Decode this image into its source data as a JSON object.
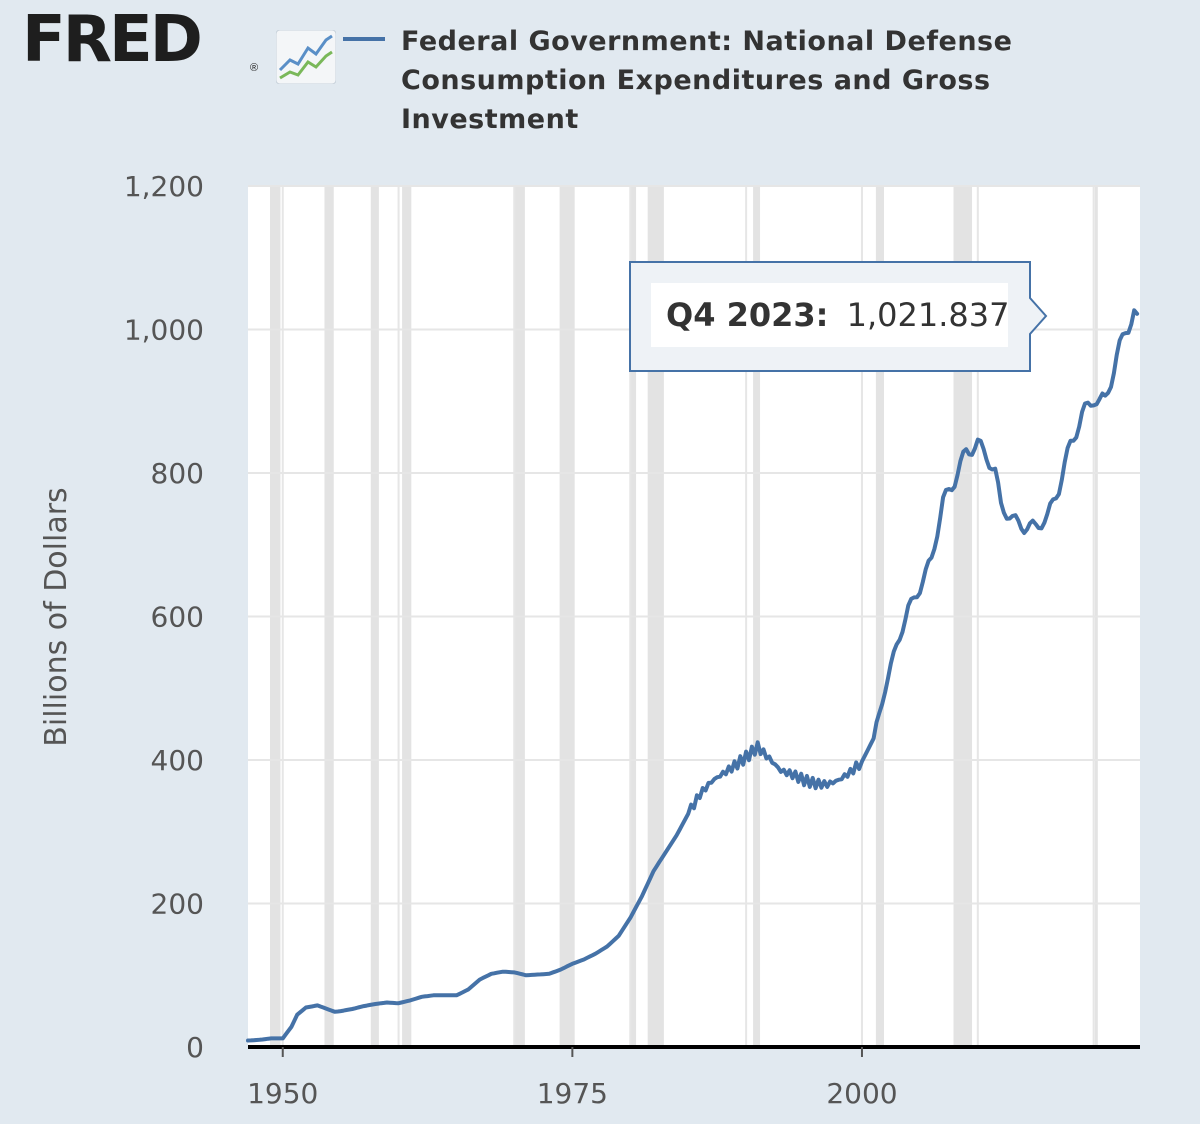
{
  "header": {
    "logo_text": "FRED",
    "logo_mark": "®",
    "logo_icon": "fred-trend-graph-icon",
    "legend_color": "#4572a7"
  },
  "chart_data": {
    "type": "line",
    "title": "Federal Government: National Defense Consumption Expenditures and Gross Investment",
    "xlabel": "",
    "ylabel": "Billions of Dollars",
    "xlim": [
      1947,
      2024
    ],
    "ylim": [
      0,
      1200
    ],
    "y_ticks": [
      0,
      200,
      400,
      600,
      800,
      1000,
      1200
    ],
    "y_tick_labels": [
      "0",
      "200",
      "400",
      "600",
      "800",
      "1,000",
      "1,200"
    ],
    "x_ticks": [
      1950,
      1975,
      2000
    ],
    "x_tick_labels": [
      "1950",
      "1975",
      "2000"
    ],
    "series": [
      {
        "name": "Federal Government: National Defense Consumption Expenditures and Gross Investment",
        "color": "#4572a7",
        "x": [
          1947.0,
          1948.0,
          1949.0,
          1950.0,
          1950.75,
          1951.25,
          1952.0,
          1953.0,
          1953.5,
          1954.5,
          1955.0,
          1956.0,
          1957.0,
          1958.0,
          1959.0,
          1960.0,
          1961.0,
          1962.0,
          1963.0,
          1964.0,
          1965.0,
          1966.0,
          1967.0,
          1968.0,
          1969.0,
          1970.0,
          1971.0,
          1972.0,
          1973.0,
          1974.0,
          1975.0,
          1976.0,
          1977.0,
          1978.0,
          1979.0,
          1980.0,
          1981.0,
          1982.0,
          1983.0,
          1984.0,
          1985.0,
          1986.0,
          1987.0,
          1988.0,
          1989.0,
          1990.0,
          1991.0,
          1992.0,
          1993.0,
          1994.0,
          1995.0,
          1996.0,
          1997.0,
          1998.0,
          1999.0,
          2000.0,
          2001.0,
          2002.0,
          2003.0,
          2004.0,
          2005.0,
          2006.0,
          2007.0,
          2008.0,
          2009.0,
          2010.0,
          2010.75,
          2011.5,
          2012.0,
          2013.0,
          2014.0,
          2015.0,
          2016.0,
          2017.0,
          2018.0,
          2019.0,
          2020.0,
          2020.5,
          2021.0,
          2022.0,
          2022.75,
          2023.5,
          2023.75
        ],
        "values": [
          9,
          10,
          12,
          12,
          28,
          45,
          55,
          58,
          55,
          49,
          50,
          53,
          57,
          60,
          62,
          61,
          65,
          70,
          72,
          72,
          72,
          80,
          94,
          102,
          105,
          104,
          100,
          101,
          102,
          108,
          116,
          122,
          130,
          140,
          155,
          180,
          210,
          245,
          270,
          295,
          325,
          352,
          370,
          381,
          392,
          404,
          418,
          402,
          385,
          380,
          372,
          367,
          366,
          372,
          383,
          398,
          430,
          500,
          560,
          610,
          640,
          680,
          760,
          790,
          830,
          840,
          825,
          800,
          755,
          735,
          725,
          725,
          738,
          780,
          840,
          880,
          905,
          898,
          902,
          960,
          1000,
          1021.837,
          1021.837
        ]
      }
    ],
    "recessions": [
      [
        1948.9,
        1949.8
      ],
      [
        1953.6,
        1954.4
      ],
      [
        1957.6,
        1958.3
      ],
      [
        1960.3,
        1961.1
      ],
      [
        1969.9,
        1970.9
      ],
      [
        1973.9,
        1975.2
      ],
      [
        1980.0,
        1980.5
      ],
      [
        1981.5,
        1982.9
      ],
      [
        1990.6,
        1991.2
      ],
      [
        2001.2,
        2001.9
      ],
      [
        2007.9,
        2009.5
      ],
      [
        2020.1,
        2020.3
      ]
    ],
    "tooltip": {
      "label": "Q4 2023:",
      "value": "1,021.837"
    }
  }
}
